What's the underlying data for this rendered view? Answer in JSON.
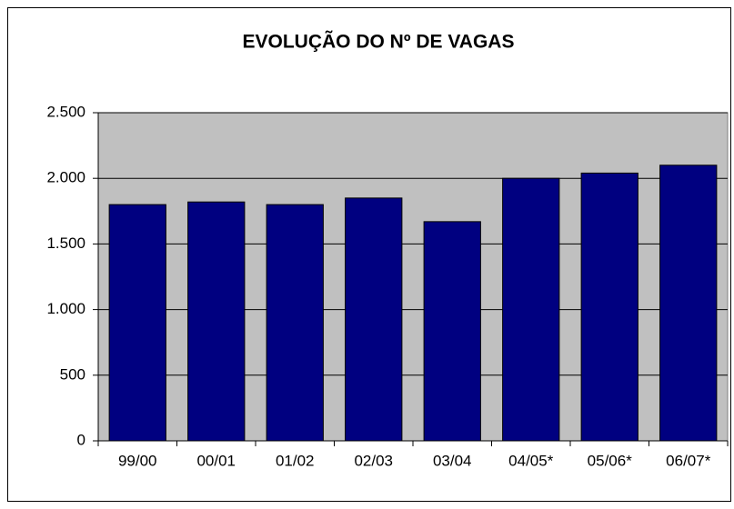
{
  "chart_data": {
    "type": "bar",
    "title": "EVOLUÇÃO DO Nº DE VAGAS",
    "categories": [
      "99/00",
      "00/01",
      "01/02",
      "02/03",
      "03/04",
      "04/05*",
      "05/06*",
      "06/07*"
    ],
    "values": [
      1800,
      1820,
      1800,
      1850,
      1670,
      2000,
      2040,
      2100
    ],
    "color": "#000080",
    "plot_background": "#c0c0c0",
    "ylim": [
      0,
      2500
    ],
    "yticks": [
      0,
      500,
      {
        "value": 1000,
        "label": "1.000"
      },
      {
        "value": 1500,
        "label": "1.500"
      },
      {
        "value": 2000,
        "label": "2.000"
      },
      {
        "value": 2500,
        "label": "2.500"
      }
    ],
    "grid": true
  }
}
